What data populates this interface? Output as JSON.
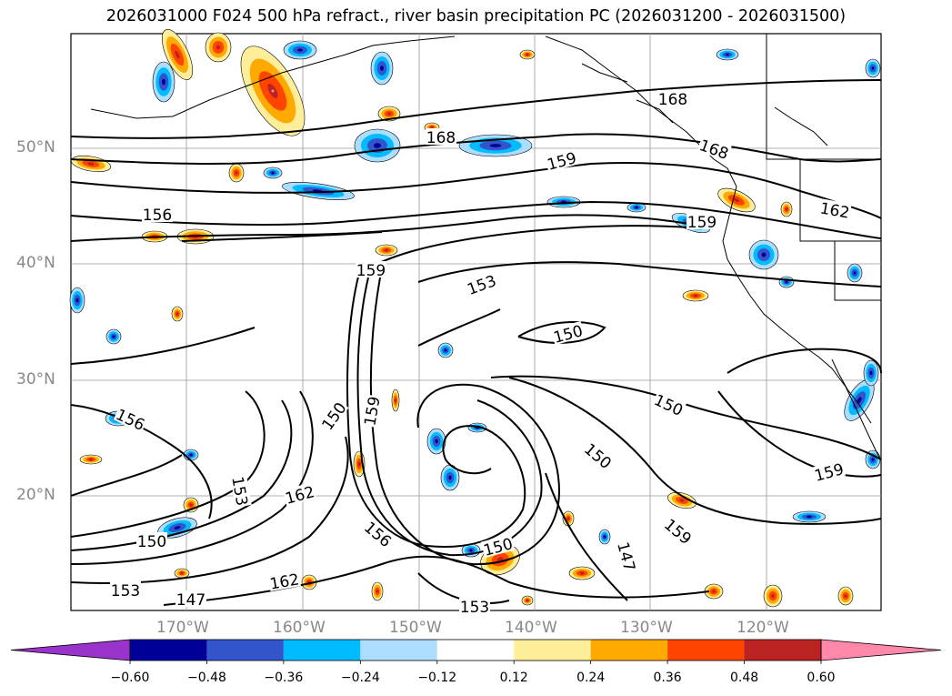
{
  "title": "2026031000 F024 500 hPa refract., river basin precipitation PC (2026031200 - 2026031500)",
  "map": {
    "lat_labels": [
      "50°N",
      "40°N",
      "30°N",
      "20°N"
    ],
    "lon_labels": [
      "170°W",
      "160°W",
      "150°W",
      "140°W",
      "130°W",
      "120°W"
    ],
    "contour_labels": [
      "168",
      "168",
      "168",
      "159",
      "156",
      "159",
      "162",
      "159",
      "153",
      "150",
      "156",
      "150",
      "159",
      "150",
      "150",
      "162",
      "153",
      "156",
      "159",
      "150",
      "153",
      "147",
      "150",
      "162",
      "147",
      "159",
      "153"
    ],
    "contour_color": "#000000",
    "grid_color": "#999999",
    "coastline_color": "#000000"
  },
  "colorbar": {
    "ticks": [
      "−0.60",
      "−0.48",
      "−0.36",
      "−0.24",
      "−0.12",
      "0.12",
      "0.24",
      "0.36",
      "0.48",
      "0.60"
    ],
    "colors": [
      "#9933cc",
      "#000099",
      "#3355cc",
      "#00bbff",
      "#aaddff",
      "#ffffff",
      "#ffee99",
      "#ffaa00",
      "#ff4400",
      "#bb2222",
      "#ff88aa"
    ]
  }
}
